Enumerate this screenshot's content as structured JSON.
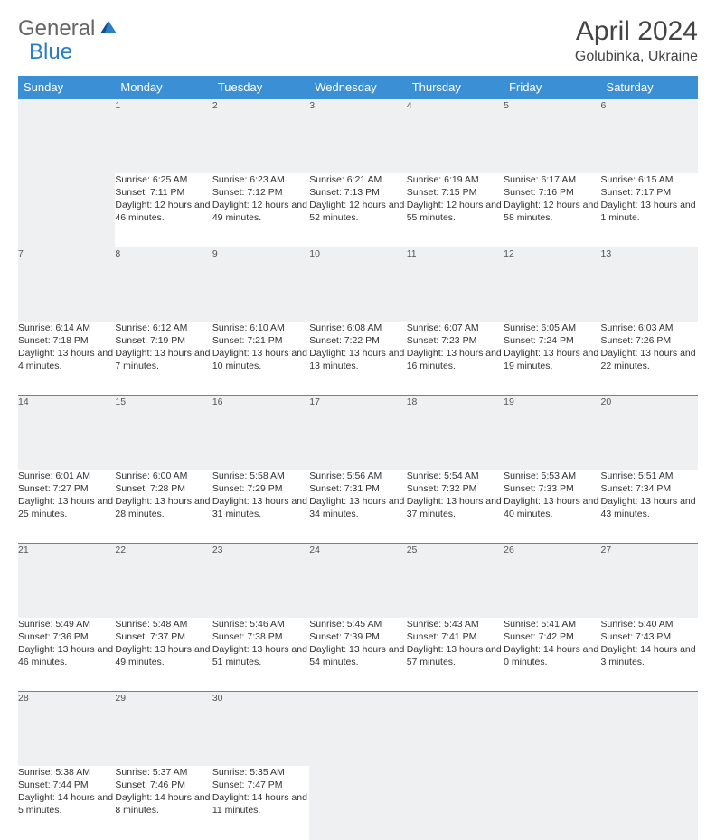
{
  "logo": {
    "general": "General",
    "blue": "Blue"
  },
  "header": {
    "month": "April 2024",
    "location": "Golubinka, Ukraine"
  },
  "colors": {
    "header_bg": "#3b8fd4",
    "header_fg": "#ffffff",
    "daynum_bg": "#eef0f2",
    "text": "#333333",
    "rule": "#3b8fd4"
  },
  "days_of_week": [
    "Sunday",
    "Monday",
    "Tuesday",
    "Wednesday",
    "Thursday",
    "Friday",
    "Saturday"
  ],
  "start_offset": 1,
  "cells": [
    {
      "n": 1,
      "sr": "Sunrise: 6:25 AM",
      "ss": "Sunset: 7:11 PM",
      "dl": "Daylight: 12 hours and 46 minutes."
    },
    {
      "n": 2,
      "sr": "Sunrise: 6:23 AM",
      "ss": "Sunset: 7:12 PM",
      "dl": "Daylight: 12 hours and 49 minutes."
    },
    {
      "n": 3,
      "sr": "Sunrise: 6:21 AM",
      "ss": "Sunset: 7:13 PM",
      "dl": "Daylight: 12 hours and 52 minutes."
    },
    {
      "n": 4,
      "sr": "Sunrise: 6:19 AM",
      "ss": "Sunset: 7:15 PM",
      "dl": "Daylight: 12 hours and 55 minutes."
    },
    {
      "n": 5,
      "sr": "Sunrise: 6:17 AM",
      "ss": "Sunset: 7:16 PM",
      "dl": "Daylight: 12 hours and 58 minutes."
    },
    {
      "n": 6,
      "sr": "Sunrise: 6:15 AM",
      "ss": "Sunset: 7:17 PM",
      "dl": "Daylight: 13 hours and 1 minute."
    },
    {
      "n": 7,
      "sr": "Sunrise: 6:14 AM",
      "ss": "Sunset: 7:18 PM",
      "dl": "Daylight: 13 hours and 4 minutes."
    },
    {
      "n": 8,
      "sr": "Sunrise: 6:12 AM",
      "ss": "Sunset: 7:19 PM",
      "dl": "Daylight: 13 hours and 7 minutes."
    },
    {
      "n": 9,
      "sr": "Sunrise: 6:10 AM",
      "ss": "Sunset: 7:21 PM",
      "dl": "Daylight: 13 hours and 10 minutes."
    },
    {
      "n": 10,
      "sr": "Sunrise: 6:08 AM",
      "ss": "Sunset: 7:22 PM",
      "dl": "Daylight: 13 hours and 13 minutes."
    },
    {
      "n": 11,
      "sr": "Sunrise: 6:07 AM",
      "ss": "Sunset: 7:23 PM",
      "dl": "Daylight: 13 hours and 16 minutes."
    },
    {
      "n": 12,
      "sr": "Sunrise: 6:05 AM",
      "ss": "Sunset: 7:24 PM",
      "dl": "Daylight: 13 hours and 19 minutes."
    },
    {
      "n": 13,
      "sr": "Sunrise: 6:03 AM",
      "ss": "Sunset: 7:26 PM",
      "dl": "Daylight: 13 hours and 22 minutes."
    },
    {
      "n": 14,
      "sr": "Sunrise: 6:01 AM",
      "ss": "Sunset: 7:27 PM",
      "dl": "Daylight: 13 hours and 25 minutes."
    },
    {
      "n": 15,
      "sr": "Sunrise: 6:00 AM",
      "ss": "Sunset: 7:28 PM",
      "dl": "Daylight: 13 hours and 28 minutes."
    },
    {
      "n": 16,
      "sr": "Sunrise: 5:58 AM",
      "ss": "Sunset: 7:29 PM",
      "dl": "Daylight: 13 hours and 31 minutes."
    },
    {
      "n": 17,
      "sr": "Sunrise: 5:56 AM",
      "ss": "Sunset: 7:31 PM",
      "dl": "Daylight: 13 hours and 34 minutes."
    },
    {
      "n": 18,
      "sr": "Sunrise: 5:54 AM",
      "ss": "Sunset: 7:32 PM",
      "dl": "Daylight: 13 hours and 37 minutes."
    },
    {
      "n": 19,
      "sr": "Sunrise: 5:53 AM",
      "ss": "Sunset: 7:33 PM",
      "dl": "Daylight: 13 hours and 40 minutes."
    },
    {
      "n": 20,
      "sr": "Sunrise: 5:51 AM",
      "ss": "Sunset: 7:34 PM",
      "dl": "Daylight: 13 hours and 43 minutes."
    },
    {
      "n": 21,
      "sr": "Sunrise: 5:49 AM",
      "ss": "Sunset: 7:36 PM",
      "dl": "Daylight: 13 hours and 46 minutes."
    },
    {
      "n": 22,
      "sr": "Sunrise: 5:48 AM",
      "ss": "Sunset: 7:37 PM",
      "dl": "Daylight: 13 hours and 49 minutes."
    },
    {
      "n": 23,
      "sr": "Sunrise: 5:46 AM",
      "ss": "Sunset: 7:38 PM",
      "dl": "Daylight: 13 hours and 51 minutes."
    },
    {
      "n": 24,
      "sr": "Sunrise: 5:45 AM",
      "ss": "Sunset: 7:39 PM",
      "dl": "Daylight: 13 hours and 54 minutes."
    },
    {
      "n": 25,
      "sr": "Sunrise: 5:43 AM",
      "ss": "Sunset: 7:41 PM",
      "dl": "Daylight: 13 hours and 57 minutes."
    },
    {
      "n": 26,
      "sr": "Sunrise: 5:41 AM",
      "ss": "Sunset: 7:42 PM",
      "dl": "Daylight: 14 hours and 0 minutes."
    },
    {
      "n": 27,
      "sr": "Sunrise: 5:40 AM",
      "ss": "Sunset: 7:43 PM",
      "dl": "Daylight: 14 hours and 3 minutes."
    },
    {
      "n": 28,
      "sr": "Sunrise: 5:38 AM",
      "ss": "Sunset: 7:44 PM",
      "dl": "Daylight: 14 hours and 5 minutes."
    },
    {
      "n": 29,
      "sr": "Sunrise: 5:37 AM",
      "ss": "Sunset: 7:46 PM",
      "dl": "Daylight: 14 hours and 8 minutes."
    },
    {
      "n": 30,
      "sr": "Sunrise: 5:35 AM",
      "ss": "Sunset: 7:47 PM",
      "dl": "Daylight: 14 hours and 11 minutes."
    }
  ]
}
